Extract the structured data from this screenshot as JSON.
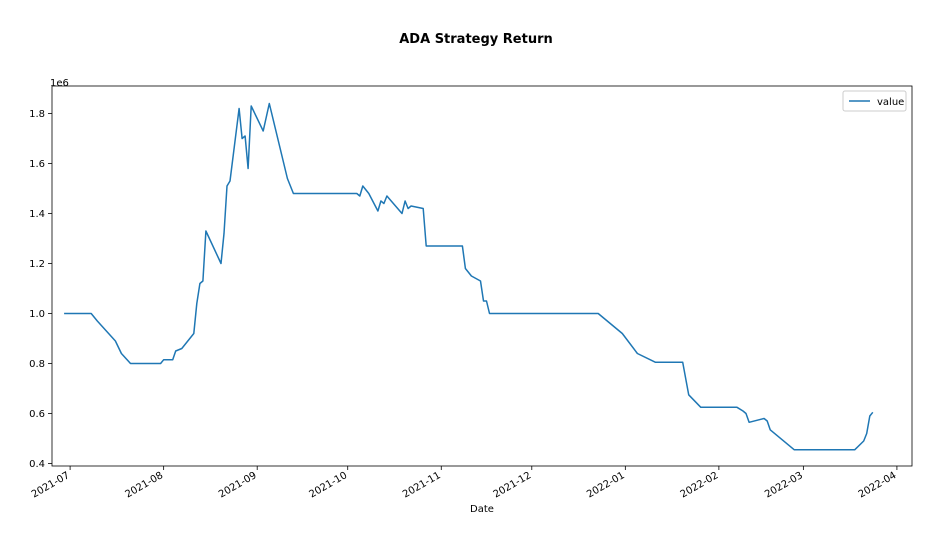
{
  "chart_data": {
    "type": "line",
    "title": "ADA Strategy Return",
    "xlabel": "Date",
    "ylabel": "",
    "y_offset_label": "1e6",
    "xlim": [
      "2021-06-25",
      "2022-04-06"
    ],
    "ylim": [
      0.39,
      1.91
    ],
    "x_ticks": [
      {
        "date": "2021-07-01",
        "label": "2021-07"
      },
      {
        "date": "2021-08-01",
        "label": "2021-08"
      },
      {
        "date": "2021-09-01",
        "label": "2021-09"
      },
      {
        "date": "2021-10-01",
        "label": "2021-10"
      },
      {
        "date": "2021-11-01",
        "label": "2021-11"
      },
      {
        "date": "2021-12-01",
        "label": "2021-12"
      },
      {
        "date": "2022-01-01",
        "label": "2022-01"
      },
      {
        "date": "2022-02-01",
        "label": "2022-02"
      },
      {
        "date": "2022-03-01",
        "label": "2022-03"
      },
      {
        "date": "2022-04-01",
        "label": "2022-04"
      }
    ],
    "y_ticks": [
      {
        "value": 0.4,
        "label": "0.4"
      },
      {
        "value": 0.6,
        "label": "0.6"
      },
      {
        "value": 0.8,
        "label": "0.8"
      },
      {
        "value": 1.0,
        "label": "1.0"
      },
      {
        "value": 1.2,
        "label": "1.2"
      },
      {
        "value": 1.4,
        "label": "1.4"
      },
      {
        "value": 1.6,
        "label": "1.6"
      },
      {
        "value": 1.8,
        "label": "1.8"
      }
    ],
    "grid": false,
    "legend_position": "top-right",
    "series": [
      {
        "name": "value",
        "color": "#1f77b4",
        "points": [
          [
            "2021-06-29",
            1.0
          ],
          [
            "2021-07-08",
            1.0
          ],
          [
            "2021-07-10",
            0.97
          ],
          [
            "2021-07-16",
            0.89
          ],
          [
            "2021-07-18",
            0.84
          ],
          [
            "2021-07-21",
            0.8
          ],
          [
            "2021-07-31",
            0.8
          ],
          [
            "2021-08-01",
            0.815
          ],
          [
            "2021-08-04",
            0.815
          ],
          [
            "2021-08-05",
            0.85
          ],
          [
            "2021-08-07",
            0.86
          ],
          [
            "2021-08-11",
            0.92
          ],
          [
            "2021-08-12",
            1.04
          ],
          [
            "2021-08-13",
            1.12
          ],
          [
            "2021-08-14",
            1.13
          ],
          [
            "2021-08-15",
            1.33
          ],
          [
            "2021-08-20",
            1.2
          ],
          [
            "2021-08-21",
            1.32
          ],
          [
            "2021-08-22",
            1.51
          ],
          [
            "2021-08-23",
            1.53
          ],
          [
            "2021-08-26",
            1.82
          ],
          [
            "2021-08-27",
            1.7
          ],
          [
            "2021-08-28",
            1.71
          ],
          [
            "2021-08-29",
            1.58
          ],
          [
            "2021-08-30",
            1.83
          ],
          [
            "2021-09-03",
            1.73
          ],
          [
            "2021-09-05",
            1.84
          ],
          [
            "2021-09-11",
            1.54
          ],
          [
            "2021-09-13",
            1.48
          ],
          [
            "2021-10-04",
            1.48
          ],
          [
            "2021-10-05",
            1.47
          ],
          [
            "2021-10-06",
            1.51
          ],
          [
            "2021-10-08",
            1.48
          ],
          [
            "2021-10-11",
            1.41
          ],
          [
            "2021-10-12",
            1.45
          ],
          [
            "2021-10-13",
            1.44
          ],
          [
            "2021-10-14",
            1.47
          ],
          [
            "2021-10-19",
            1.4
          ],
          [
            "2021-10-20",
            1.45
          ],
          [
            "2021-10-21",
            1.42
          ],
          [
            "2021-10-22",
            1.43
          ],
          [
            "2021-10-26",
            1.42
          ],
          [
            "2021-10-27",
            1.27
          ],
          [
            "2021-11-08",
            1.27
          ],
          [
            "2021-11-09",
            1.18
          ],
          [
            "2021-11-11",
            1.15
          ],
          [
            "2021-11-14",
            1.13
          ],
          [
            "2021-11-15",
            1.05
          ],
          [
            "2021-11-16",
            1.05
          ],
          [
            "2021-11-17",
            1.0
          ],
          [
            "2021-12-23",
            1.0
          ],
          [
            "2021-12-31",
            0.92
          ],
          [
            "2022-01-05",
            0.84
          ],
          [
            "2022-01-11",
            0.805
          ],
          [
            "2022-01-20",
            0.805
          ],
          [
            "2022-01-22",
            0.675
          ],
          [
            "2022-01-26",
            0.625
          ],
          [
            "2022-02-07",
            0.625
          ],
          [
            "2022-02-09",
            0.61
          ],
          [
            "2022-02-10",
            0.6
          ],
          [
            "2022-02-11",
            0.565
          ],
          [
            "2022-02-16",
            0.58
          ],
          [
            "2022-02-17",
            0.57
          ],
          [
            "2022-02-18",
            0.535
          ],
          [
            "2022-02-26",
            0.455
          ],
          [
            "2022-03-18",
            0.455
          ],
          [
            "2022-03-21",
            0.49
          ],
          [
            "2022-03-22",
            0.52
          ],
          [
            "2022-03-23",
            0.59
          ],
          [
            "2022-03-24",
            0.605
          ]
        ]
      }
    ]
  }
}
